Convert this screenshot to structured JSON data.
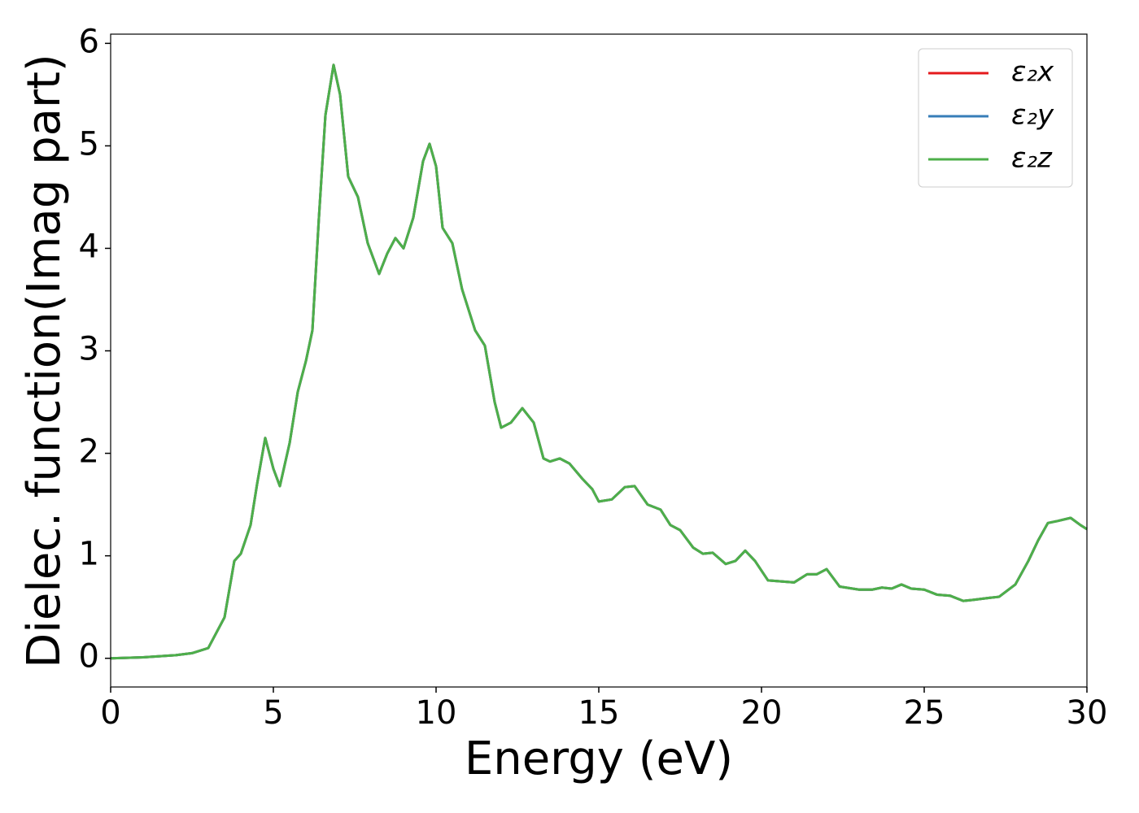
{
  "chart_data": {
    "type": "line",
    "xlabel": "Energy (eV)",
    "ylabel": "Dielec. function(Imag part)",
    "x": [
      0,
      1,
      2,
      2.5,
      3,
      3.5,
      3.8,
      4,
      4.3,
      4.5,
      4.75,
      5,
      5.2,
      5.5,
      5.75,
      6,
      6.2,
      6.4,
      6.6,
      6.85,
      7.05,
      7.3,
      7.6,
      7.9,
      8.25,
      8.5,
      8.75,
      9,
      9.3,
      9.6,
      9.8,
      10,
      10.2,
      10.5,
      10.8,
      11.2,
      11.5,
      11.8,
      12,
      12.3,
      12.65,
      13,
      13.3,
      13.5,
      13.8,
      14.1,
      14.5,
      14.8,
      15,
      15.4,
      15.8,
      16.1,
      16.5,
      16.9,
      17.2,
      17.5,
      17.9,
      18.2,
      18.5,
      18.9,
      19.2,
      19.5,
      19.8,
      20.2,
      20.6,
      21,
      21.4,
      21.7,
      22,
      22.4,
      23,
      23.4,
      23.7,
      24,
      24.3,
      24.6,
      25,
      25.4,
      25.8,
      26.2,
      26.5,
      27,
      27.3,
      27.8,
      28.2,
      28.5,
      28.8,
      29.1,
      29.5,
      29.8,
      30
    ],
    "series": [
      {
        "name": "ε₂x",
        "color": "#e41a1c",
        "values": [
          0,
          0.01,
          0.03,
          0.05,
          0.1,
          0.4,
          0.95,
          1.02,
          1.3,
          1.7,
          2.15,
          1.85,
          1.68,
          2.1,
          2.6,
          2.9,
          3.2,
          4.3,
          5.3,
          5.79,
          5.5,
          4.7,
          4.5,
          4.05,
          3.75,
          3.95,
          4.1,
          4.0,
          4.3,
          4.85,
          5.02,
          4.8,
          4.2,
          4.05,
          3.6,
          3.2,
          3.05,
          2.5,
          2.25,
          2.3,
          2.44,
          2.3,
          1.95,
          1.92,
          1.95,
          1.9,
          1.75,
          1.65,
          1.53,
          1.55,
          1.67,
          1.68,
          1.5,
          1.45,
          1.3,
          1.25,
          1.08,
          1.02,
          1.03,
          0.92,
          0.95,
          1.05,
          0.95,
          0.76,
          0.75,
          0.74,
          0.82,
          0.82,
          0.87,
          0.7,
          0.67,
          0.67,
          0.69,
          0.68,
          0.72,
          0.68,
          0.67,
          0.62,
          0.61,
          0.56,
          0.57,
          0.59,
          0.6,
          0.72,
          0.95,
          1.15,
          1.32,
          1.34,
          1.37,
          1.3,
          1.26
        ]
      },
      {
        "name": "ε₂y",
        "color": "#377eb8",
        "values": [
          0,
          0.01,
          0.03,
          0.05,
          0.1,
          0.4,
          0.95,
          1.02,
          1.3,
          1.7,
          2.15,
          1.85,
          1.68,
          2.1,
          2.6,
          2.9,
          3.2,
          4.3,
          5.3,
          5.79,
          5.5,
          4.7,
          4.5,
          4.05,
          3.75,
          3.95,
          4.1,
          4.0,
          4.3,
          4.85,
          5.02,
          4.8,
          4.2,
          4.05,
          3.6,
          3.2,
          3.05,
          2.5,
          2.25,
          2.3,
          2.44,
          2.3,
          1.95,
          1.92,
          1.95,
          1.9,
          1.75,
          1.65,
          1.53,
          1.55,
          1.67,
          1.68,
          1.5,
          1.45,
          1.3,
          1.25,
          1.08,
          1.02,
          1.03,
          0.92,
          0.95,
          1.05,
          0.95,
          0.76,
          0.75,
          0.74,
          0.82,
          0.82,
          0.87,
          0.7,
          0.67,
          0.67,
          0.69,
          0.68,
          0.72,
          0.68,
          0.67,
          0.62,
          0.61,
          0.56,
          0.57,
          0.59,
          0.6,
          0.72,
          0.95,
          1.15,
          1.32,
          1.34,
          1.37,
          1.3,
          1.26
        ]
      },
      {
        "name": "ε₂z",
        "color": "#4daf4a",
        "values": [
          0,
          0.01,
          0.03,
          0.05,
          0.1,
          0.4,
          0.95,
          1.02,
          1.3,
          1.7,
          2.15,
          1.85,
          1.68,
          2.1,
          2.6,
          2.9,
          3.2,
          4.3,
          5.3,
          5.79,
          5.5,
          4.7,
          4.5,
          4.05,
          3.75,
          3.95,
          4.1,
          4.0,
          4.3,
          4.85,
          5.02,
          4.8,
          4.2,
          4.05,
          3.6,
          3.2,
          3.05,
          2.5,
          2.25,
          2.3,
          2.44,
          2.3,
          1.95,
          1.92,
          1.95,
          1.9,
          1.75,
          1.65,
          1.53,
          1.55,
          1.67,
          1.68,
          1.5,
          1.45,
          1.3,
          1.25,
          1.08,
          1.02,
          1.03,
          0.92,
          0.95,
          1.05,
          0.95,
          0.76,
          0.75,
          0.74,
          0.82,
          0.82,
          0.87,
          0.7,
          0.67,
          0.67,
          0.69,
          0.68,
          0.72,
          0.68,
          0.67,
          0.62,
          0.61,
          0.56,
          0.57,
          0.59,
          0.6,
          0.72,
          0.95,
          1.15,
          1.32,
          1.34,
          1.37,
          1.3,
          1.26
        ]
      }
    ],
    "xlim": [
      0,
      30
    ],
    "xticks": [
      0,
      5,
      10,
      15,
      20,
      25,
      30
    ],
    "ylim": [
      -0.28,
      6.09
    ],
    "yticks": [
      0,
      1,
      2,
      3,
      4,
      5,
      6
    ],
    "grid": false,
    "legend": "upper right"
  }
}
